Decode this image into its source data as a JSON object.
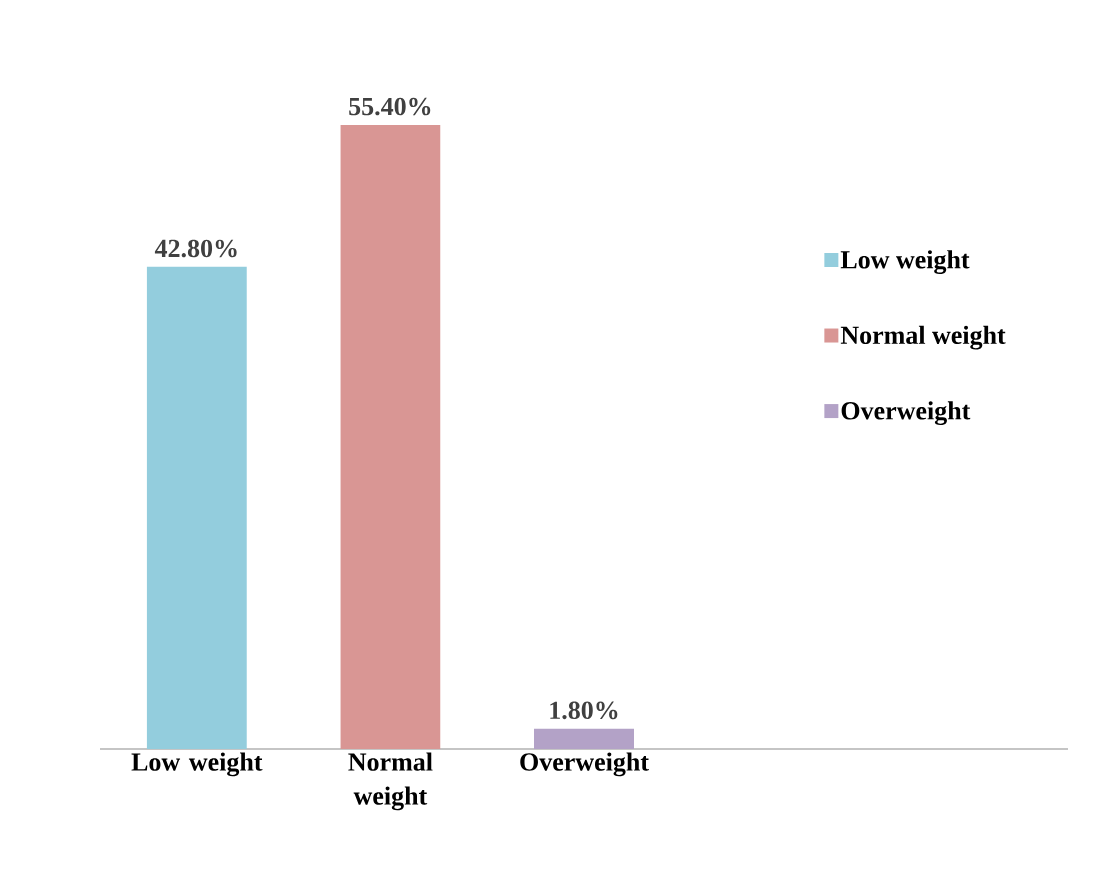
{
  "chart_data": {
    "type": "bar",
    "categories": [
      "Low weight",
      "Normal weight",
      "Overweight"
    ],
    "series": [
      {
        "name": "Low weight",
        "color": "#93cddd",
        "values": [
          42.8,
          null,
          null
        ],
        "value_labels": [
          "42.80%",
          null,
          null
        ]
      },
      {
        "name": "Normal weight",
        "color": "#d99694",
        "values": [
          null,
          55.4,
          null
        ],
        "value_labels": [
          null,
          "55.40%",
          null
        ]
      },
      {
        "name": "Overweight",
        "color": "#b3a2c7",
        "values": [
          null,
          null,
          1.8
        ],
        "value_labels": [
          null,
          null,
          "1.80%"
        ]
      }
    ],
    "legend": "right"
  }
}
